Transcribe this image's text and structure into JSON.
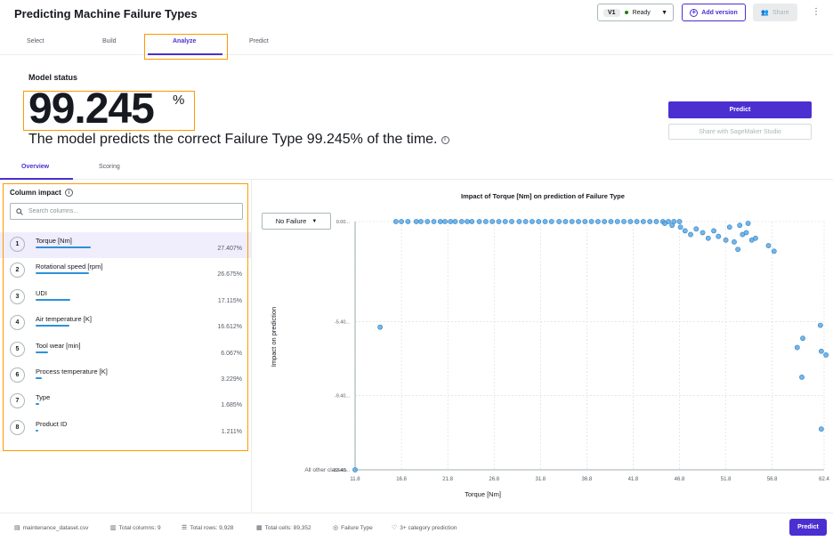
{
  "header": {
    "title": "Predicting Machine Failure Types",
    "version": "V1",
    "status": "Ready",
    "add_version": "Add version",
    "share": "Share"
  },
  "tabs": [
    "Select",
    "Build",
    "Analyze",
    "Predict"
  ],
  "model": {
    "status_label": "Model status",
    "score": "99.245",
    "percent_sign": "%",
    "description": "The model predicts the correct Failure Type 99.245% of the time.",
    "predict_label": "Predict",
    "share_studio_label": "Share with SageMaker Studio"
  },
  "subtabs": [
    "Overview",
    "Scoring"
  ],
  "column_impact": {
    "title": "Column impact",
    "search_placeholder": "Search columns...",
    "features": [
      {
        "rank": "1",
        "name": "Torque [Nm]",
        "pct": "27.407%",
        "value": 27.407
      },
      {
        "rank": "2",
        "name": "Rotational speed [rpm]",
        "pct": "26.675%",
        "value": 26.675
      },
      {
        "rank": "3",
        "name": "UDI",
        "pct": "17.115%",
        "value": 17.115
      },
      {
        "rank": "4",
        "name": "Air temperature [K]",
        "pct": "16.612%",
        "value": 16.612
      },
      {
        "rank": "5",
        "name": "Tool wear [min]",
        "pct": "6.067%",
        "value": 6.067
      },
      {
        "rank": "6",
        "name": "Process temperature [K]",
        "pct": "3.229%",
        "value": 3.229
      },
      {
        "rank": "7",
        "name": "Type",
        "pct": "1.685%",
        "value": 1.685
      },
      {
        "rank": "8",
        "name": "Product ID",
        "pct": "1.211%",
        "value": 1.211
      }
    ]
  },
  "chart": {
    "class_selected": "No Failure",
    "all_other_label": "All other classes"
  },
  "chart_data": {
    "type": "scatter",
    "title": "Impact of Torque [Nm] on prediction of Failure Type",
    "xlabel": "Torque [Nm]",
    "ylabel": "Impact on prediction",
    "xlim": [
      11.8,
      62.4
    ],
    "ylim": [
      -13.4,
      0.0
    ],
    "xticks": [
      "11.8",
      "16.8",
      "21.8",
      "26.8",
      "31.8",
      "36.8",
      "41.8",
      "46.8",
      "51.8",
      "56.8",
      "62.4"
    ],
    "yticks": [
      "0.00",
      "-5.40",
      "-9.40",
      "-13.40"
    ],
    "grid": true,
    "points": [
      [
        11.8,
        -13.4
      ],
      [
        14.5,
        -5.7
      ],
      [
        16.2,
        0
      ],
      [
        16.8,
        0
      ],
      [
        17.5,
        0
      ],
      [
        18.4,
        0
      ],
      [
        18.9,
        0
      ],
      [
        19.6,
        0
      ],
      [
        20.3,
        0
      ],
      [
        21.0,
        0
      ],
      [
        21.5,
        0
      ],
      [
        22.1,
        0
      ],
      [
        22.6,
        0
      ],
      [
        23.3,
        0
      ],
      [
        23.9,
        0
      ],
      [
        24.4,
        0
      ],
      [
        25.2,
        0
      ],
      [
        25.9,
        0
      ],
      [
        26.6,
        0
      ],
      [
        27.3,
        0
      ],
      [
        28.0,
        0
      ],
      [
        28.7,
        0
      ],
      [
        29.5,
        0
      ],
      [
        30.2,
        0
      ],
      [
        30.9,
        0
      ],
      [
        31.6,
        0
      ],
      [
        32.3,
        0
      ],
      [
        33.0,
        0
      ],
      [
        33.8,
        0
      ],
      [
        34.5,
        0
      ],
      [
        35.2,
        0
      ],
      [
        35.9,
        0
      ],
      [
        36.6,
        0
      ],
      [
        37.3,
        0
      ],
      [
        38.0,
        0
      ],
      [
        38.7,
        0
      ],
      [
        39.4,
        0
      ],
      [
        40.1,
        0
      ],
      [
        40.8,
        0
      ],
      [
        41.5,
        0
      ],
      [
        42.2,
        0
      ],
      [
        42.9,
        0
      ],
      [
        43.6,
        0
      ],
      [
        44.3,
        0
      ],
      [
        45.0,
        0
      ],
      [
        45.6,
        0
      ],
      [
        46.2,
        0
      ],
      [
        46.8,
        0
      ],
      [
        45.2,
        -0.1
      ],
      [
        46.0,
        -0.2
      ],
      [
        46.9,
        -0.3
      ],
      [
        47.4,
        -0.5
      ],
      [
        48.0,
        -0.7
      ],
      [
        48.6,
        -0.4
      ],
      [
        49.3,
        -0.6
      ],
      [
        49.9,
        -0.9
      ],
      [
        50.5,
        -0.5
      ],
      [
        51.0,
        -0.8
      ],
      [
        51.8,
        -1.0
      ],
      [
        52.2,
        -0.3
      ],
      [
        52.7,
        -1.1
      ],
      [
        53.1,
        -1.5
      ],
      [
        53.6,
        -0.7
      ],
      [
        54.2,
        -0.1
      ],
      [
        54.6,
        -1.0
      ],
      [
        55.0,
        -0.9
      ],
      [
        56.4,
        -1.3
      ],
      [
        57.0,
        -1.6
      ],
      [
        54.0,
        -0.6
      ],
      [
        53.3,
        -0.2
      ],
      [
        59.5,
        -6.8
      ],
      [
        60.1,
        -6.3
      ],
      [
        60.0,
        -8.4
      ],
      [
        62.0,
        -5.6
      ],
      [
        62.1,
        -7.0
      ],
      [
        62.6,
        -7.2
      ],
      [
        62.1,
        -11.2
      ]
    ]
  },
  "footer": {
    "dataset": "maintenance_dataset.csv",
    "columns": "Total columns: 9",
    "rows": "Total rows: 9,928",
    "cells": "Total cells: 89,352",
    "target": "Failure Type",
    "prediction": "3+ category prediction",
    "predict_label": "Predict"
  }
}
